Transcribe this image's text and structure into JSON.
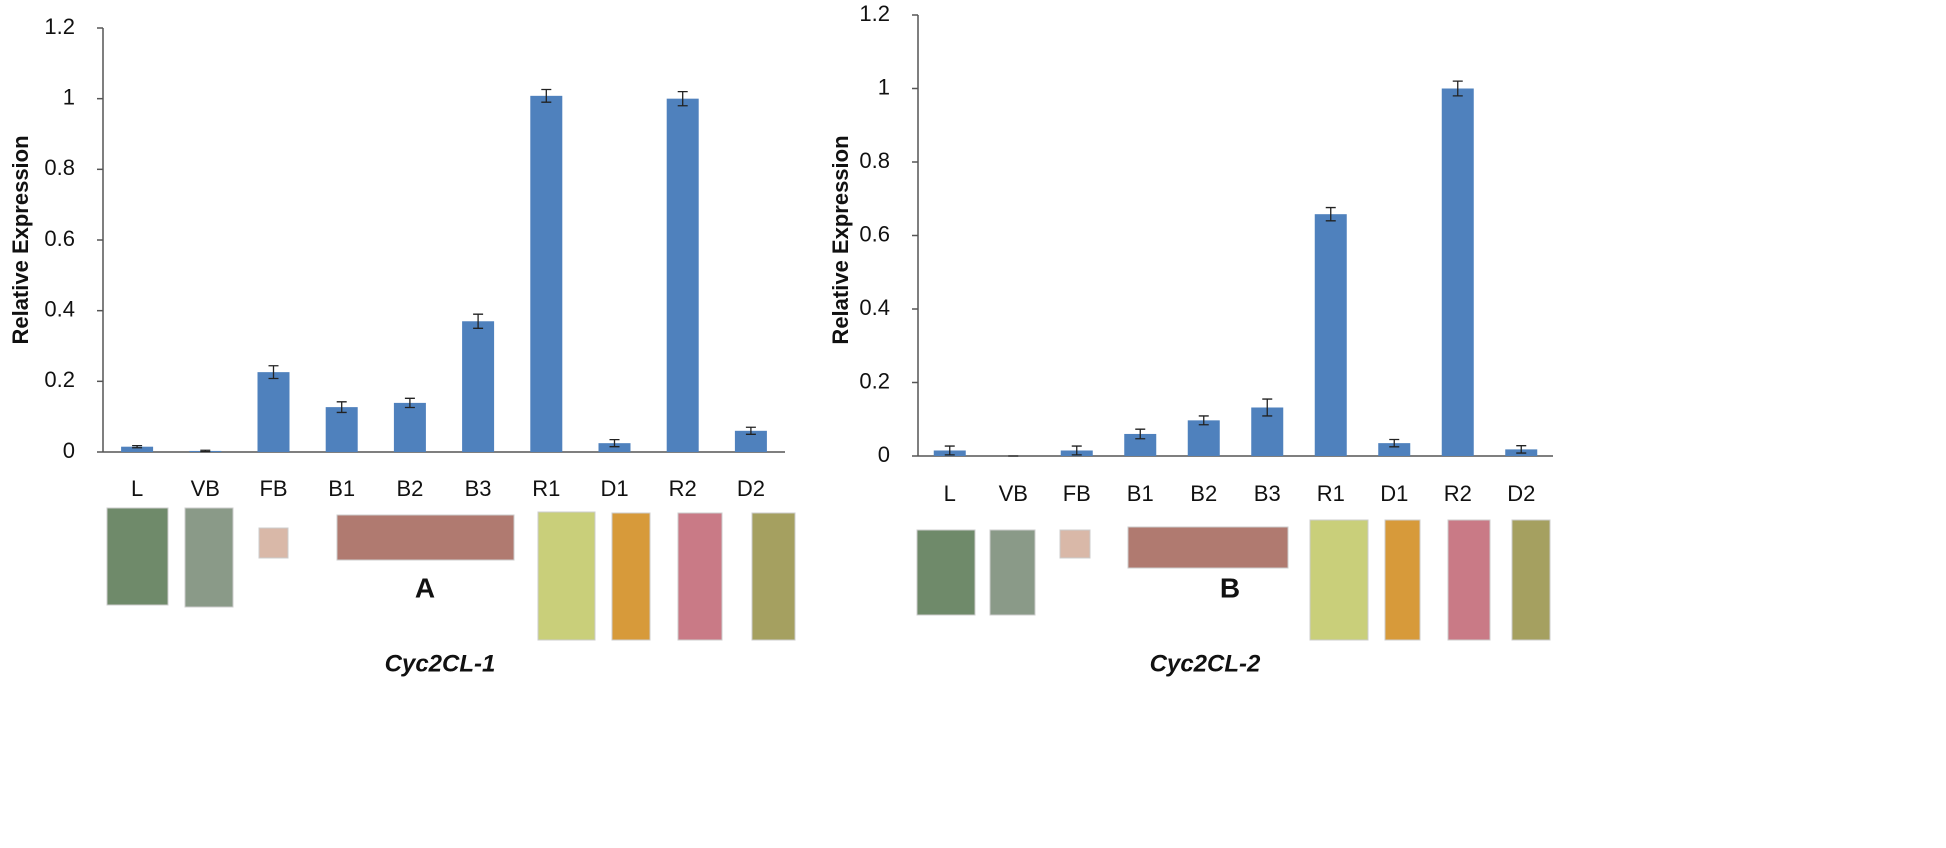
{
  "chart_data": [
    {
      "type": "bar",
      "ylabel": "Relative Expression",
      "panel_label": "A",
      "caption": "Cyc2CL-1",
      "categories": [
        "L",
        "VB",
        "FB",
        "B1",
        "B2",
        "B3",
        "R1",
        "D1",
        "R2",
        "D2"
      ],
      "values": [
        0.015,
        0.003,
        0.226,
        0.127,
        0.139,
        0.37,
        1.008,
        0.025,
        1.0,
        0.06
      ],
      "errors": [
        0.003,
        0.002,
        0.018,
        0.015,
        0.013,
        0.02,
        0.018,
        0.01,
        0.02,
        0.01
      ],
      "color": "#4f81bd",
      "ylim": [
        0,
        1.2
      ],
      "yticks": [
        0,
        0.2,
        0.4,
        0.6,
        0.8,
        1,
        1.2
      ],
      "grid": false
    },
    {
      "type": "bar",
      "ylabel": "Relative Expression",
      "panel_label": "B",
      "caption": "Cyc2CL-2",
      "categories": [
        "L",
        "VB",
        "FB",
        "B1",
        "B2",
        "B3",
        "R1",
        "D1",
        "R2",
        "D2"
      ],
      "values": [
        0.015,
        0,
        0.015,
        0.06,
        0.097,
        0.132,
        0.658,
        0.035,
        1.0,
        0.018
      ],
      "errors": [
        0.012,
        0,
        0.012,
        0.013,
        0.012,
        0.023,
        0.018,
        0.01,
        0.02,
        0.01
      ],
      "color": "#4f81bd",
      "ylim": [
        0,
        1.2
      ],
      "yticks": [
        0,
        0.2,
        0.4,
        0.6,
        0.8,
        1,
        1.2
      ],
      "grid": false
    }
  ]
}
